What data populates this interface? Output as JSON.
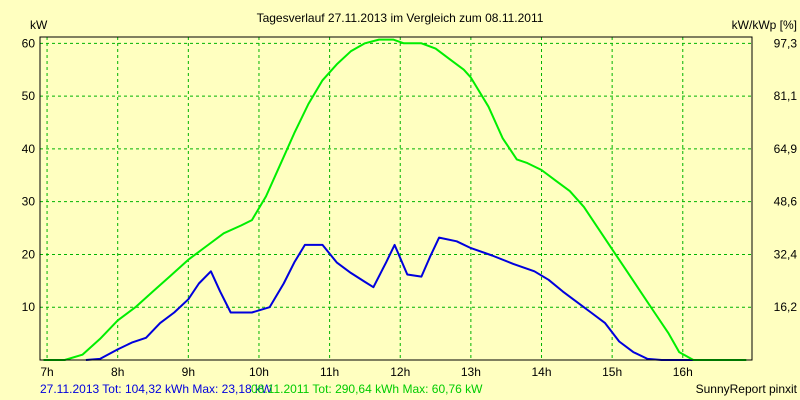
{
  "chart_data": {
    "type": "line",
    "title": "Tagesverlauf 27.11.2013 im Vergleich zum 08.11.2011",
    "ylabel_left": "kW",
    "ylabel_right": "kW/kWp [%]",
    "xlabel": "",
    "xlim": [
      6.9,
      16.98
    ],
    "ylim": [
      0,
      61.2
    ],
    "x_ticks": [
      {
        "value": 7,
        "label": "7h"
      },
      {
        "value": 8,
        "label": "8h"
      },
      {
        "value": 9,
        "label": "9h"
      },
      {
        "value": 10,
        "label": "10h"
      },
      {
        "value": 11,
        "label": "11h"
      },
      {
        "value": 12,
        "label": "12h"
      },
      {
        "value": 13,
        "label": "13h"
      },
      {
        "value": 14,
        "label": "14h"
      },
      {
        "value": 15,
        "label": "15h"
      },
      {
        "value": 16,
        "label": "16h"
      }
    ],
    "y_ticks_left": [
      {
        "value": 10,
        "label": "10"
      },
      {
        "value": 20,
        "label": "20"
      },
      {
        "value": 30,
        "label": "30"
      },
      {
        "value": 40,
        "label": "40"
      },
      {
        "value": 50,
        "label": "50"
      },
      {
        "value": 60,
        "label": "60"
      }
    ],
    "y_ticks_right": [
      {
        "value": 10,
        "label": "16,2"
      },
      {
        "value": 20,
        "label": "32,4"
      },
      {
        "value": 30,
        "label": "48,6"
      },
      {
        "value": 40,
        "label": "64,9"
      },
      {
        "value": 50,
        "label": "81,1"
      },
      {
        "value": 60,
        "label": "97,3"
      }
    ],
    "grid": true,
    "series": [
      {
        "name": "27.11.2013",
        "color": "#0000dd",
        "points": [
          [
            7.55,
            0
          ],
          [
            7.75,
            0.2
          ],
          [
            8.0,
            2.0
          ],
          [
            8.2,
            3.3
          ],
          [
            8.4,
            4.2
          ],
          [
            8.6,
            7.0
          ],
          [
            8.8,
            9.0
          ],
          [
            9.0,
            11.5
          ],
          [
            9.15,
            14.5
          ],
          [
            9.32,
            16.8
          ],
          [
            9.45,
            13.0
          ],
          [
            9.6,
            9.0
          ],
          [
            9.9,
            9.0
          ],
          [
            10.15,
            10.0
          ],
          [
            10.35,
            14.5
          ],
          [
            10.5,
            18.5
          ],
          [
            10.65,
            21.8
          ],
          [
            10.9,
            21.8
          ],
          [
            11.1,
            18.5
          ],
          [
            11.3,
            16.5
          ],
          [
            11.5,
            14.8
          ],
          [
            11.62,
            13.8
          ],
          [
            11.8,
            18.5
          ],
          [
            11.92,
            21.8
          ],
          [
            12.1,
            16.2
          ],
          [
            12.3,
            15.8
          ],
          [
            12.42,
            19.5
          ],
          [
            12.55,
            23.2
          ],
          [
            12.8,
            22.5
          ],
          [
            13.0,
            21.2
          ],
          [
            13.3,
            19.8
          ],
          [
            13.6,
            18.2
          ],
          [
            13.9,
            16.8
          ],
          [
            14.1,
            15.2
          ],
          [
            14.3,
            13.0
          ],
          [
            14.5,
            11.0
          ],
          [
            14.7,
            9.0
          ],
          [
            14.9,
            7.0
          ],
          [
            15.1,
            3.5
          ],
          [
            15.3,
            1.5
          ],
          [
            15.5,
            0.2
          ],
          [
            15.7,
            0
          ],
          [
            16.15,
            0
          ]
        ]
      },
      {
        "name": "08.11.2011",
        "color": "#00ee00",
        "points": [
          [
            6.95,
            0
          ],
          [
            7.25,
            0
          ],
          [
            7.5,
            1.0
          ],
          [
            7.75,
            4.0
          ],
          [
            8.0,
            7.5
          ],
          [
            8.25,
            10.0
          ],
          [
            8.5,
            13.0
          ],
          [
            8.75,
            16.0
          ],
          [
            9.0,
            19.0
          ],
          [
            9.25,
            21.5
          ],
          [
            9.5,
            24.0
          ],
          [
            9.75,
            25.5
          ],
          [
            9.9,
            26.5
          ],
          [
            10.1,
            31.0
          ],
          [
            10.3,
            37.0
          ],
          [
            10.5,
            43.0
          ],
          [
            10.7,
            48.5
          ],
          [
            10.9,
            53.0
          ],
          [
            11.1,
            56.0
          ],
          [
            11.3,
            58.5
          ],
          [
            11.5,
            60.0
          ],
          [
            11.7,
            60.7
          ],
          [
            11.9,
            60.7
          ],
          [
            12.05,
            60.0
          ],
          [
            12.3,
            60.0
          ],
          [
            12.5,
            59.0
          ],
          [
            12.7,
            57.0
          ],
          [
            12.9,
            55.0
          ],
          [
            13.0,
            53.5
          ],
          [
            13.25,
            48.0
          ],
          [
            13.45,
            42.0
          ],
          [
            13.65,
            38.0
          ],
          [
            13.8,
            37.3
          ],
          [
            14.0,
            36.0
          ],
          [
            14.2,
            34.0
          ],
          [
            14.4,
            32.0
          ],
          [
            14.6,
            29.0
          ],
          [
            14.8,
            25.0
          ],
          [
            15.0,
            21.0
          ],
          [
            15.2,
            17.0
          ],
          [
            15.4,
            13.0
          ],
          [
            15.6,
            9.0
          ],
          [
            15.8,
            5.0
          ],
          [
            15.95,
            1.5
          ],
          [
            16.15,
            0
          ],
          [
            16.9,
            0
          ]
        ]
      }
    ],
    "footer": {
      "series1_text": "27.11.2013 Tot: 104,32 kWh Max: 23,18 kW",
      "series2_text": "08.11.2011 Tot: 290,64 kWh Max: 60,76 kW",
      "credit": "SunnyReport pinxit"
    },
    "colors": {
      "background": "#ffffc0",
      "grid": "#00b400",
      "axis": "#000000"
    }
  }
}
